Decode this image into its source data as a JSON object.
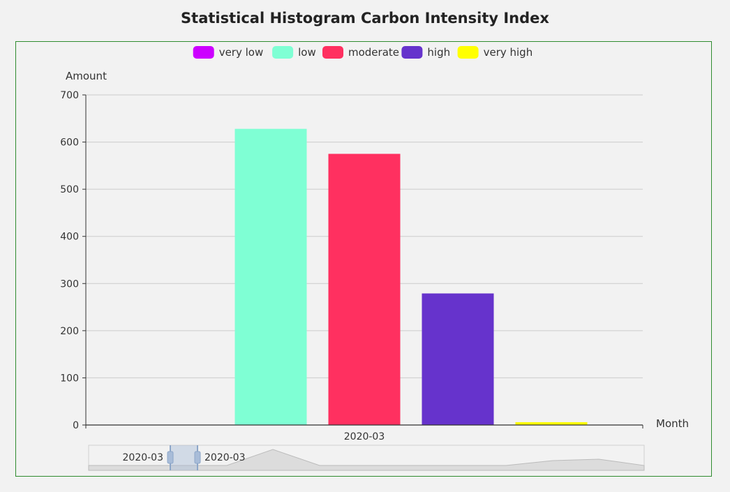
{
  "page": {
    "title": "Statistical Histogram Carbon Intensity Index"
  },
  "chart_data": {
    "type": "bar",
    "title": "Statistical Histogram Carbon Intensity Index",
    "xlabel": "Month",
    "ylabel": "Amount",
    "categories": [
      "2020-03"
    ],
    "ylim": [
      0,
      700
    ],
    "yticks": [
      0,
      100,
      200,
      300,
      400,
      500,
      600,
      700
    ],
    "grid": true,
    "legend_position": "top",
    "series": [
      {
        "name": "very low",
        "color": "#cc00ff",
        "values": [
          0
        ]
      },
      {
        "name": "low",
        "color": "#7fffd4",
        "values": [
          628
        ]
      },
      {
        "name": "moderate",
        "color": "#ff3060",
        "values": [
          575
        ]
      },
      {
        "name": "high",
        "color": "#6633cc",
        "values": [
          279
        ]
      },
      {
        "name": "very high",
        "color": "#ffff00",
        "values": [
          6
        ]
      }
    ],
    "datazoom": {
      "start_label": "2020-03",
      "end_label": "2020-03"
    }
  }
}
